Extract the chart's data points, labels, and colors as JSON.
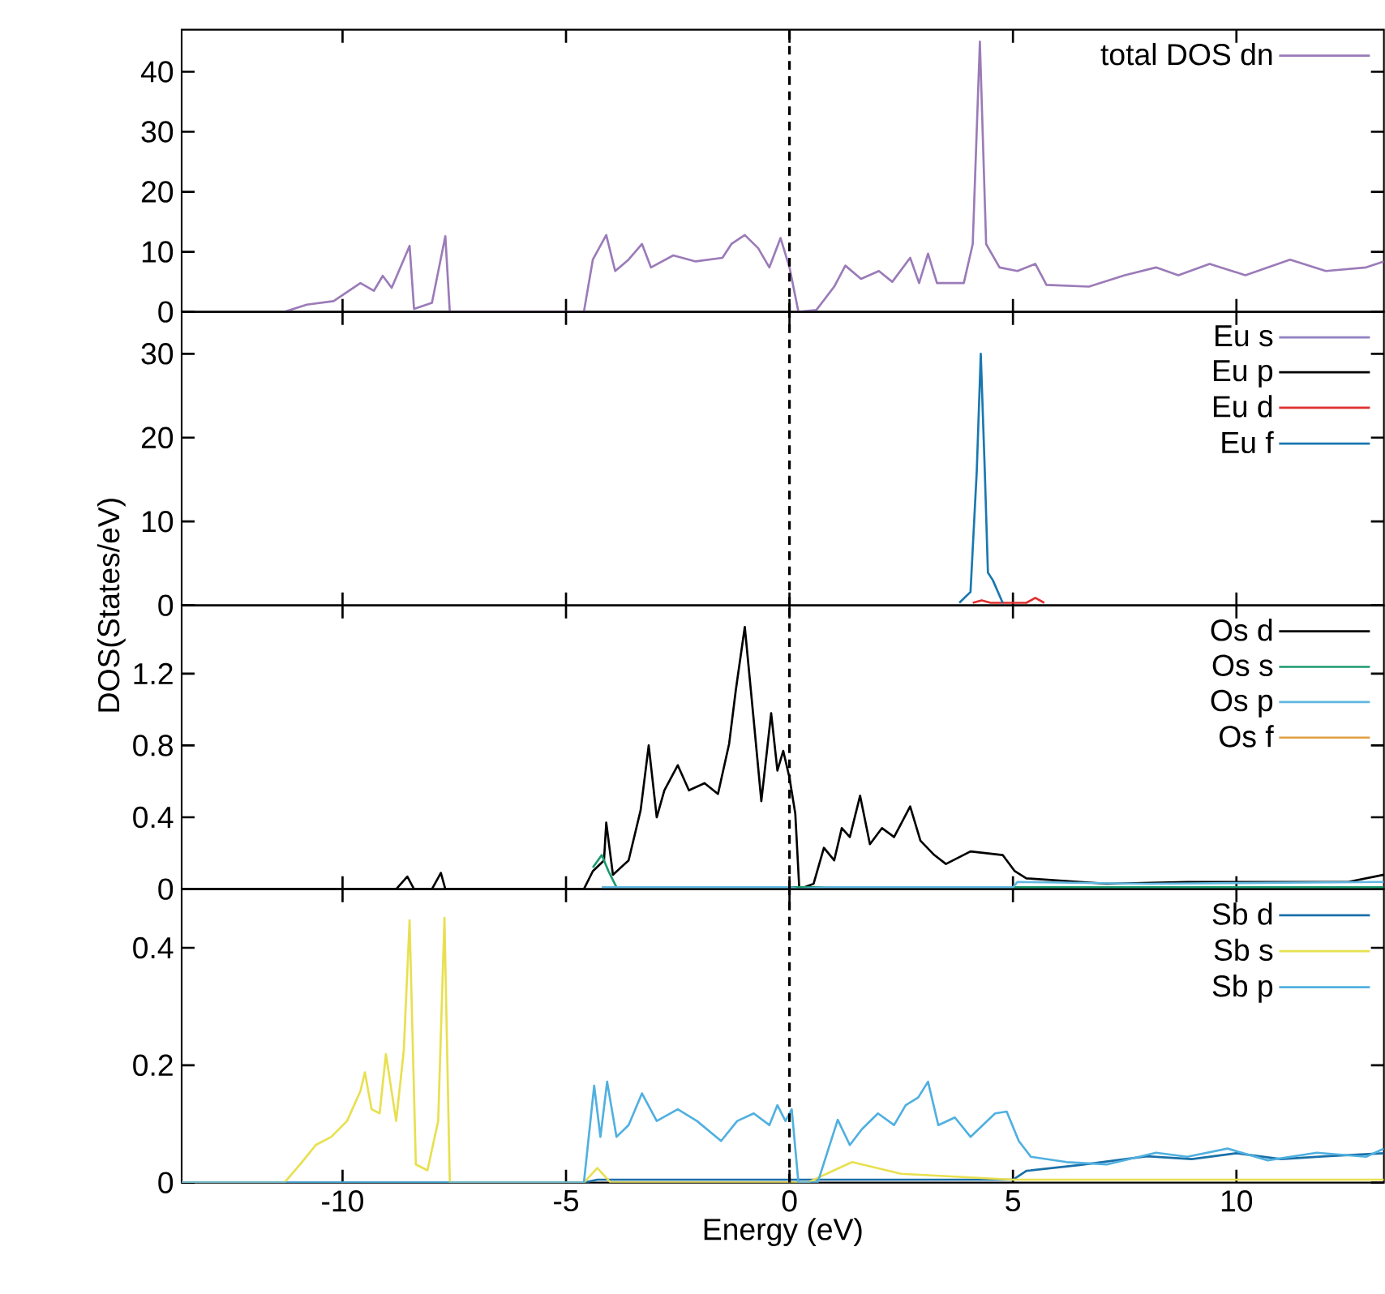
{
  "chart_data": [
    {
      "type": "line",
      "xlim": [
        -13.6,
        13.3
      ],
      "ylim": [
        0,
        47
      ],
      "xticks": [
        -10,
        -5,
        0,
        5,
        10
      ],
      "yticks": [
        0,
        10,
        20,
        30,
        40
      ],
      "tick_labels": "y",
      "legend": "top right",
      "ref_lines": [
        {
          "axis": "x",
          "value": 0,
          "color": "#000000",
          "line_style": "dashed"
        }
      ],
      "series": [
        {
          "name": "total DOS dn",
          "color": "#9b7bb8",
          "x": [
            -11.3,
            -10.8,
            -10.2,
            -9.6,
            -9.3,
            -9.1,
            -8.9,
            -8.5,
            -8.4,
            -8.0,
            -7.7,
            -7.6,
            -4.6,
            -4.4,
            -4.1,
            -3.9,
            -3.6,
            -3.3,
            -3.1,
            -2.6,
            -2.1,
            -1.5,
            -1.3,
            -1.0,
            -0.7,
            -0.45,
            -0.2,
            0,
            0.2,
            0.6,
            1.0,
            1.25,
            1.6,
            2.0,
            2.3,
            2.7,
            2.9,
            3.1,
            3.3,
            3.9,
            4.1,
            4.26,
            4.4,
            4.7,
            5.1,
            5.5,
            5.75,
            6.7,
            7.5,
            8.2,
            8.7,
            9.4,
            10.2,
            11.2,
            12.0,
            12.9,
            13.3
          ],
          "values": [
            0,
            1.2,
            1.8,
            4.8,
            3.5,
            6,
            4,
            11,
            0.5,
            1.5,
            12.6,
            0,
            0,
            8.7,
            12.8,
            6.8,
            8.7,
            11.3,
            7.4,
            9.4,
            8.4,
            9,
            11.3,
            12.8,
            10.6,
            7.4,
            12.3,
            7.4,
            0,
            0.3,
            4.2,
            7.7,
            5.5,
            6.8,
            5,
            9,
            4.8,
            9.7,
            4.8,
            4.8,
            11.3,
            45,
            11.3,
            7.4,
            6.8,
            8,
            4.5,
            4.2,
            6.1,
            7.4,
            6.1,
            8,
            6.1,
            8.7,
            6.8,
            7.4,
            8.4
          ]
        }
      ]
    },
    {
      "type": "line",
      "xlim": [
        -13.6,
        13.3
      ],
      "ylim": [
        0,
        35
      ],
      "xticks": [
        -10,
        -5,
        0,
        5,
        10
      ],
      "yticks": [
        0,
        10,
        20,
        30
      ],
      "tick_labels": "y",
      "legend": "top right",
      "ylabel": "DOS(States/eV)",
      "ref_lines": [
        {
          "axis": "x",
          "value": 0,
          "color": "#000000",
          "line_style": "dashed"
        }
      ],
      "series": [
        {
          "name": "Eu s",
          "color": "#9080c0"
        },
        {
          "name": "Eu p",
          "color": "#000000"
        },
        {
          "name": "Eu d",
          "color": "#e03030",
          "x": [
            4.1,
            4.3,
            4.5,
            5.3,
            5.5,
            5.7
          ],
          "values": [
            0.3,
            0.6,
            0.3,
            0.3,
            0.9,
            0.3
          ]
        },
        {
          "name": "Eu f",
          "color": "#1a78b0",
          "x": [
            3.8,
            4.05,
            4.19,
            4.28,
            4.37,
            4.44,
            4.55,
            4.77
          ],
          "values": [
            0.3,
            1.6,
            16,
            30,
            16,
            3.9,
            3,
            0.3
          ]
        }
      ]
    },
    {
      "type": "line",
      "xlim": [
        -13.6,
        13.3
      ],
      "ylim": [
        0,
        1.58
      ],
      "xticks": [
        -10,
        -5,
        0,
        5,
        10
      ],
      "yticks": [
        0,
        0.4,
        0.8,
        1.2
      ],
      "tick_labels": "y",
      "legend": "top right",
      "ref_lines": [
        {
          "axis": "x",
          "value": 0,
          "color": "#000000",
          "line_style": "dashed"
        }
      ],
      "series": [
        {
          "name": "Os d",
          "color": "#000000",
          "x": [
            -13.6,
            -8.8,
            -8.55,
            -8.4,
            -8.0,
            -7.8,
            -7.7,
            -4.6,
            -4.4,
            -4.15,
            -4.1,
            -3.95,
            -3.6,
            -3.33,
            -3.15,
            -2.97,
            -2.8,
            -2.5,
            -2.25,
            -1.9,
            -1.6,
            -1.35,
            -1.2,
            -1.0,
            -0.8,
            -0.63,
            -0.41,
            -0.27,
            -0.14,
            0,
            0.13,
            0.22,
            0.54,
            0.77,
            1.0,
            1.17,
            1.35,
            1.58,
            1.8,
            2.07,
            2.34,
            2.7,
            2.93,
            3.24,
            3.5,
            4.05,
            4.77,
            5.04,
            5.3,
            7.1,
            8.9,
            10.7,
            12.5,
            13.3
          ],
          "values": [
            0,
            0,
            0.07,
            0,
            0,
            0.09,
            0,
            0,
            0.1,
            0.16,
            0.37,
            0.08,
            0.16,
            0.44,
            0.8,
            0.4,
            0.55,
            0.69,
            0.55,
            0.59,
            0.53,
            0.81,
            1.11,
            1.46,
            0.94,
            0.49,
            0.98,
            0.66,
            0.77,
            0.62,
            0.42,
            0,
            0.03,
            0.23,
            0.16,
            0.34,
            0.29,
            0.52,
            0.25,
            0.34,
            0.29,
            0.46,
            0.27,
            0.19,
            0.14,
            0.21,
            0.19,
            0.1,
            0.06,
            0.03,
            0.04,
            0.04,
            0.04,
            0.08
          ]
        },
        {
          "name": "Os s",
          "color": "#1a9a70",
          "x": [
            -4.4,
            -4.2,
            -4.05,
            -3.87,
            13.3
          ],
          "values": [
            0.12,
            0.19,
            0.1,
            0.01,
            0.01
          ]
        },
        {
          "name": "Os p",
          "color": "#60b8e0",
          "x": [
            -4.2,
            0,
            0.2,
            0.8,
            5,
            5.1,
            8,
            13.3
          ],
          "values": [
            0.01,
            0.01,
            0,
            0.01,
            0.01,
            0.04,
            0.03,
            0.04
          ]
        },
        {
          "name": "Os f",
          "color": "#e0a040"
        }
      ]
    },
    {
      "type": "line",
      "xlim": [
        -13.6,
        13.3
      ],
      "ylim": [
        0,
        0.5
      ],
      "xticks": [
        -10,
        -5,
        0,
        5,
        10
      ],
      "yticks": [
        0,
        0.2,
        0.4
      ],
      "legend": "top right",
      "xlabel": "Energy (eV)",
      "ref_lines": [
        {
          "axis": "x",
          "value": 0,
          "color": "#000000",
          "line_style": "dashed"
        }
      ],
      "series": [
        {
          "name": "Sb d",
          "color": "#1a70a8",
          "x": [
            -13.6,
            -4.6,
            -4.3,
            5,
            5.3,
            6.5,
            8,
            9,
            10,
            11,
            12,
            13.3
          ],
          "values": [
            0,
            0,
            0.005,
            0.005,
            0.02,
            0.03,
            0.045,
            0.04,
            0.05,
            0.04,
            0.045,
            0.05
          ]
        },
        {
          "name": "Sb s",
          "color": "#e8e050",
          "x": [
            -13.6,
            -11.3,
            -10.95,
            -10.6,
            -10.25,
            -9.9,
            -9.6,
            -9.5,
            -9.35,
            -9.17,
            -9.03,
            -8.8,
            -8.63,
            -8.5,
            -8.36,
            -8.1,
            -7.86,
            -7.72,
            -7.6,
            -4.6,
            -4.3,
            -4.0,
            0.4,
            1.4,
            2.5,
            5,
            13.3
          ],
          "values": [
            0,
            0,
            0.031,
            0.064,
            0.078,
            0.105,
            0.156,
            0.188,
            0.125,
            0.118,
            0.219,
            0.105,
            0.225,
            0.447,
            0.031,
            0.021,
            0.105,
            0.451,
            0,
            0,
            0.025,
            0,
            0,
            0.035,
            0.015,
            0.005,
            0.005
          ]
        },
        {
          "name": "Sb p",
          "color": "#50b0e0",
          "x": [
            -13.6,
            -4.6,
            -4.37,
            -4.23,
            -4.08,
            -3.87,
            -3.6,
            -3.3,
            -2.97,
            -2.5,
            -2.07,
            -1.53,
            -1.17,
            -0.8,
            -0.45,
            -0.27,
            -0.09,
            0.05,
            0.2,
            0.63,
            1.08,
            1.35,
            1.62,
            1.98,
            2.34,
            2.6,
            2.88,
            3.1,
            3.33,
            3.7,
            4.05,
            4.6,
            4.86,
            5.13,
            5.4,
            6.2,
            7.1,
            8.2,
            8.9,
            9.8,
            10.7,
            11.8,
            12.9,
            13.3
          ],
          "values": [
            0,
            0,
            0.165,
            0.078,
            0.172,
            0.078,
            0.098,
            0.152,
            0.105,
            0.125,
            0.105,
            0.071,
            0.105,
            0.118,
            0.098,
            0.132,
            0.105,
            0.125,
            0,
            0,
            0.107,
            0.064,
            0.091,
            0.118,
            0.098,
            0.132,
            0.145,
            0.172,
            0.098,
            0.111,
            0.078,
            0.118,
            0.121,
            0.071,
            0.044,
            0.035,
            0.031,
            0.051,
            0.044,
            0.058,
            0.038,
            0.051,
            0.044,
            0.058
          ]
        }
      ]
    }
  ]
}
